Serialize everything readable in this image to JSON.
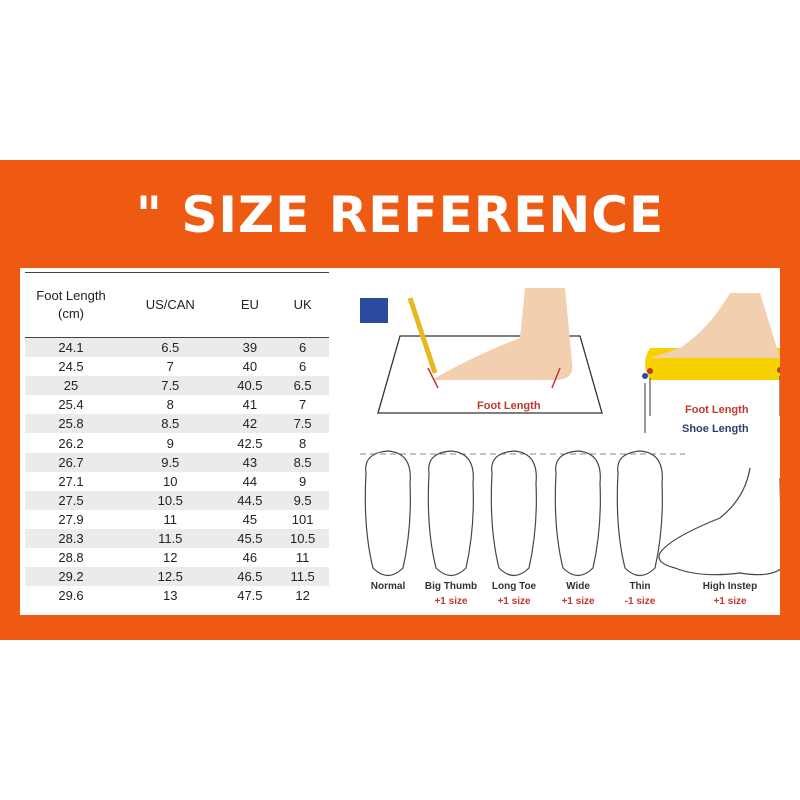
{
  "title": "\" SIZE REFERENCE",
  "colors": {
    "band": "#ee5a12",
    "accent_red": "#c0392b",
    "foot_skin": "#f2cfae",
    "insole": "#f5d200"
  },
  "table": {
    "headers": [
      "Foot Length (cm)",
      "US/CAN",
      "EU",
      "UK"
    ],
    "rows": [
      [
        "24.1",
        "6.5",
        "39",
        "6"
      ],
      [
        "24.5",
        "7",
        "40",
        "6"
      ],
      [
        "25",
        "7.5",
        "40.5",
        "6.5"
      ],
      [
        "25.4",
        "8",
        "41",
        "7"
      ],
      [
        "25.8",
        "8.5",
        "42",
        "7.5"
      ],
      [
        "26.2",
        "9",
        "42.5",
        "8"
      ],
      [
        "26.7",
        "9.5",
        "43",
        "8.5"
      ],
      [
        "27.1",
        "10",
        "44",
        "9"
      ],
      [
        "27.5",
        "10.5",
        "44.5",
        "9.5"
      ],
      [
        "27.9",
        "11",
        "45",
        "101"
      ],
      [
        "28.3",
        "11.5",
        "45.5",
        "10.5"
      ],
      [
        "28.8",
        "12",
        "46",
        "11"
      ],
      [
        "29.2",
        "12.5",
        "46.5",
        "11.5"
      ],
      [
        "29.6",
        "13",
        "47.5",
        "12"
      ]
    ]
  },
  "measure": {
    "foot_length_label": "Foot Length",
    "foot_length_label2": "Foot Length",
    "shoe_length_label": "Shoe Length"
  },
  "foot_types": [
    {
      "name": "Normal",
      "adjust": ""
    },
    {
      "name": "Big Thumb",
      "adjust": "+1 size"
    },
    {
      "name": "Long Toe",
      "adjust": "+1 size"
    },
    {
      "name": "Wide",
      "adjust": "+1 size"
    },
    {
      "name": "Thin",
      "adjust": "-1 size"
    },
    {
      "name": "High Instep",
      "adjust": "+1 size"
    }
  ]
}
